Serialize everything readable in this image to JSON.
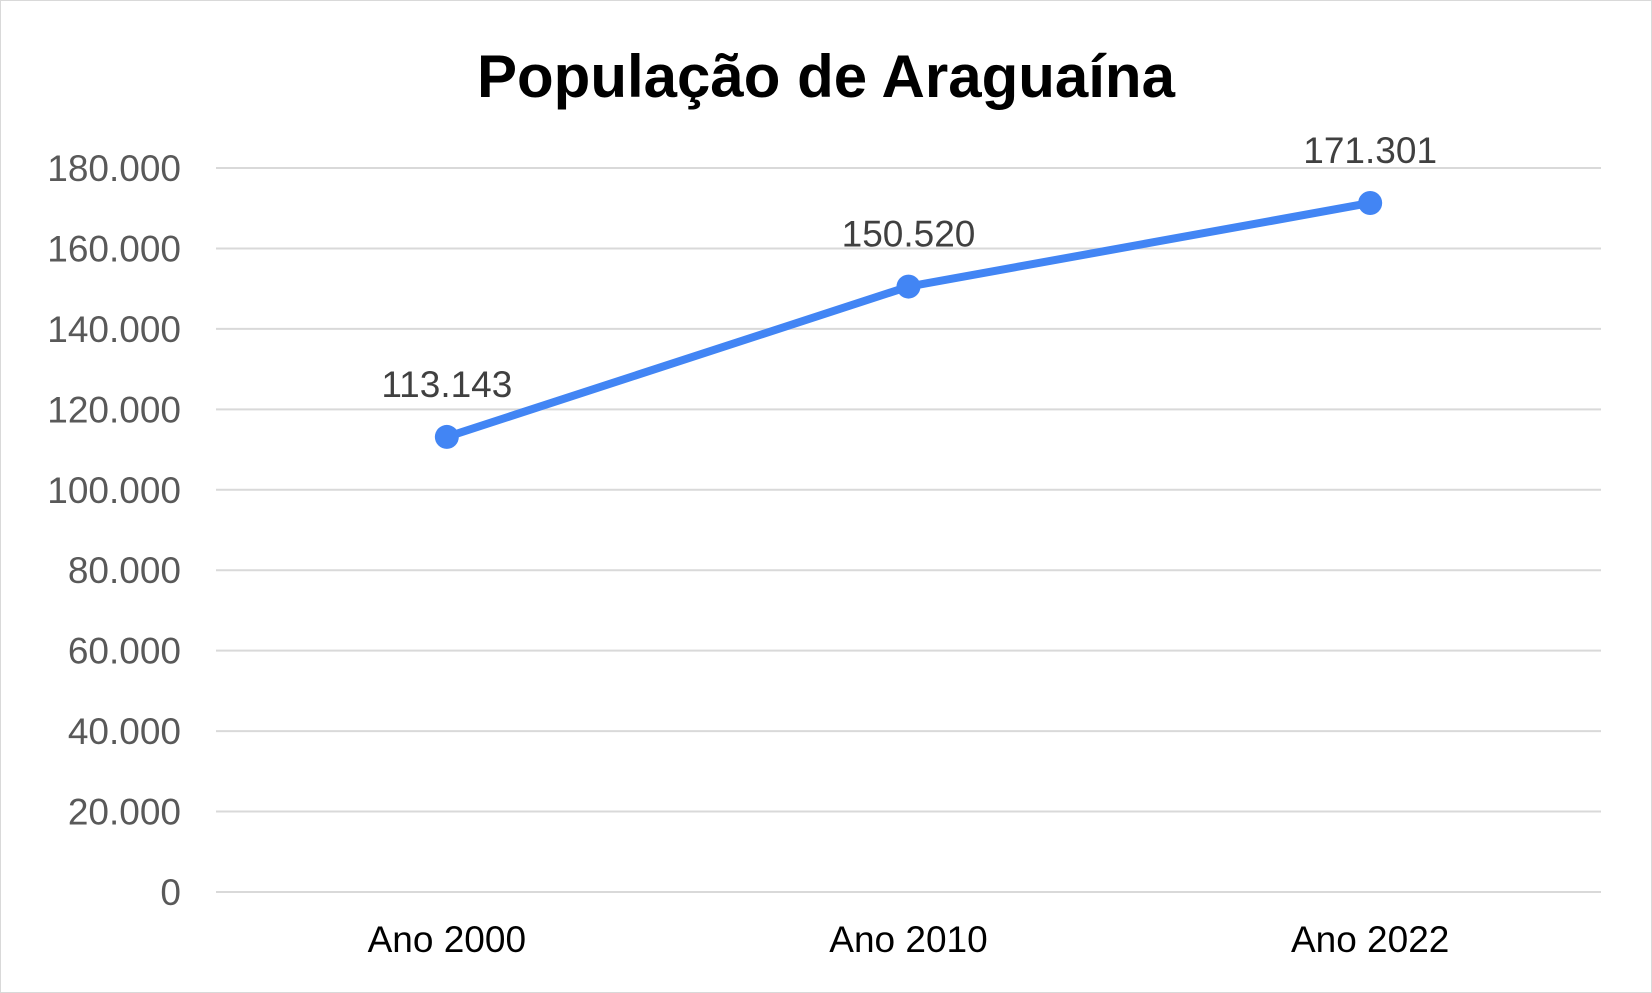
{
  "chart_data": {
    "type": "line",
    "title": "População de Araguaína",
    "categories": [
      "Ano 2000",
      "Ano 2010",
      "Ano 2022"
    ],
    "series": [
      {
        "values": [
          113143,
          150520,
          171301
        ],
        "data_labels": [
          "113.143",
          "150.520",
          "171.301"
        ],
        "color": "#4285f4"
      }
    ],
    "ylim": [
      0,
      180000
    ],
    "yticks": [
      0,
      20000,
      40000,
      60000,
      80000,
      100000,
      120000,
      140000,
      160000,
      180000
    ],
    "ytick_labels": [
      "0",
      "20.000",
      "40.000",
      "60.000",
      "80.000",
      "100.000",
      "120.000",
      "140.000",
      "160.000",
      "180.000"
    ],
    "grid": true,
    "legend": "none"
  },
  "colors": {
    "gridline": "#d9d9d9",
    "y_tick_text": "#595959",
    "data_label_text": "#404040"
  }
}
